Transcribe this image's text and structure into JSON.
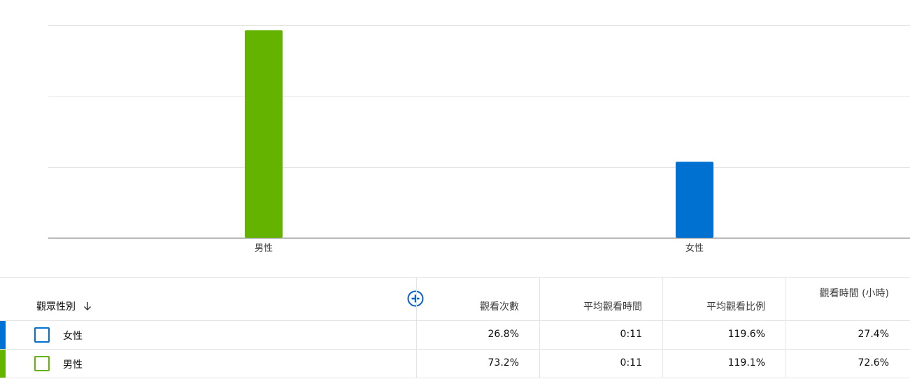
{
  "chart_data": {
    "type": "bar",
    "categories": [
      "男性",
      "女性"
    ],
    "values": [
      73.2,
      26.8
    ],
    "colors": [
      "#63b300",
      "#0070d1"
    ],
    "ylim": [
      0,
      75
    ],
    "gridlines": [
      0,
      25,
      50,
      75
    ],
    "title": "",
    "xlabel": "",
    "ylabel": ""
  },
  "table": {
    "add_column_icon": "plus-circle-icon",
    "dimension_header": "觀眾性別",
    "sort_icon": "arrow-down-icon",
    "columns": [
      "觀看次數",
      "平均觀看時間",
      "平均觀看比例",
      "觀看時間 (小時)"
    ],
    "rows": [
      {
        "label": "女性",
        "color": "#0070d1",
        "values": [
          "26.8%",
          "0:11",
          "119.6%",
          "27.4%"
        ]
      },
      {
        "label": "男性",
        "color": "#63b300",
        "values": [
          "73.2%",
          "0:11",
          "119.1%",
          "72.6%"
        ]
      }
    ]
  }
}
